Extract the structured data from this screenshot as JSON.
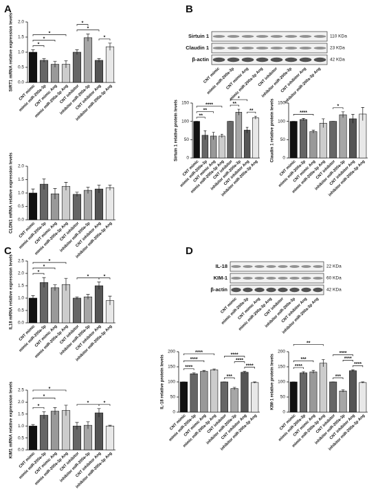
{
  "panel_labels": [
    "A",
    "B",
    "C",
    "D"
  ],
  "blots": [
    {
      "rows": [
        {
          "label": "Sirtuin 1",
          "size": "110 KDa"
        },
        {
          "label": "Claudin 1",
          "size": "23 KDa"
        },
        {
          "label": "β-actin",
          "size": "42 KDa"
        }
      ],
      "lanes": [
        "CNT mimic",
        "mimic miR-200a-3p",
        "CNT mimic Ang",
        "mimic miR-200a-3p Ang",
        "CNT inhibitor",
        "inhibitor miR-200a-3p",
        "CNT inhibitor Ang",
        "inhibitor miR-200a-3p Ang"
      ]
    },
    {
      "rows": [
        {
          "label": "IL-18",
          "size": "22 KDa"
        },
        {
          "label": "KIM-1",
          "size": "60 KDa"
        },
        {
          "label": "β-actin",
          "size": "42 KDa"
        }
      ],
      "lanes": [
        "CNT mimic",
        "mimic miR-200a-3p",
        "CNT mimic Ang",
        "mimic miR-200a-3p Ang",
        "CNT inhibitor",
        "inhibitor miR-200a-3p",
        "CNT inhibitor Ang",
        "inhibitor miR-200a-3p Ang"
      ]
    }
  ],
  "chart_data": [
    {
      "type": "bar",
      "ylabel": "SIRT1 mRNA relative expression levels",
      "categories": [
        "CNT mimic",
        "mimic miR-200a-3p",
        "CNT mimic Ang",
        "mimic miR-200a-3p Ang",
        "CNT inhibitor",
        "inhibitor miR-200a-3p",
        "CNT inhibitor Ang",
        "inhibitor miR-200a-3p Ang"
      ],
      "values": [
        1.0,
        0.73,
        0.6,
        0.6,
        1.0,
        1.48,
        0.73,
        1.18
      ],
      "errors": [
        0.08,
        0.06,
        0.1,
        0.12,
        0.08,
        0.12,
        0.06,
        0.12
      ],
      "colors": [
        "#111111",
        "#666666",
        "#999999",
        "#cccccc",
        "#666666",
        "#a6a6a6",
        "#555555",
        "#e8e8e8"
      ],
      "ylim": [
        0,
        2
      ],
      "yticks": [
        {
          "value": 0,
          "label": "0.0"
        },
        0.5,
        {
          "value": 1,
          "label": "1.0"
        },
        1.5,
        {
          "value": 2,
          "label": "2.0"
        }
      ],
      "annotations": [
        "*",
        "*",
        "*",
        "*",
        "*",
        "*"
      ]
    },
    {
      "type": "bar",
      "ylabel": "CLDN1 mRNA relative expression levels",
      "categories": [
        "CNT mimic",
        "mimic miR-200a-3p",
        "CNT mimic Ang",
        "mimic miR-200a-3p Ang",
        "CNT inhibitor",
        "inhibitor miR-200a-3p",
        "CNT inhibitor Ang",
        "inhibitor miR-200a-3p Ang"
      ],
      "values": [
        1.0,
        1.33,
        0.97,
        1.25,
        0.95,
        1.1,
        1.15,
        1.2
      ],
      "errors": [
        0.15,
        0.2,
        0.2,
        0.15,
        0.08,
        0.12,
        0.15,
        0.1
      ],
      "colors": [
        "#111111",
        "#666666",
        "#999999",
        "#cccccc",
        "#666666",
        "#a6a6a6",
        "#555555",
        "#e8e8e8"
      ],
      "ylim": [
        0,
        2
      ],
      "yticks": [
        {
          "value": 0,
          "label": "0.0"
        },
        0.5,
        {
          "value": 1,
          "label": "1.0"
        },
        1.5,
        {
          "value": 2,
          "label": "2.0"
        }
      ],
      "annotations": []
    },
    {
      "type": "bar",
      "ylabel": "Sirtuin 1 relative protein levels",
      "categories": [
        "CNT mimic",
        "mimic miR-200a-3p",
        "CNT mimic Ang",
        "mimic miR-200a-3p Ang",
        "CNT inhibitor",
        "inhibitor miR-200a-3p",
        "CNT inhibitor Ang",
        "inhibitor miR-200a-3p Ang"
      ],
      "values": [
        100,
        62,
        60,
        60,
        100,
        125,
        76,
        110
      ],
      "errors": [
        0,
        12,
        10,
        5,
        0,
        8,
        8,
        4
      ],
      "colors": [
        "#111111",
        "#666666",
        "#999999",
        "#cccccc",
        "#666666",
        "#a6a6a6",
        "#555555",
        "#e8e8e8"
      ],
      "ylim": [
        0,
        150
      ],
      "yticks": [
        0,
        50,
        100,
        150
      ],
      "annotations": [
        "**",
        "**",
        "****",
        "**",
        "*",
        "**"
      ]
    },
    {
      "type": "bar",
      "ylabel": "Claudin 1 relative protein levels",
      "categories": [
        "CNT mimic",
        "mimic miR-200a-3p",
        "CNT mimic Ang",
        "mimic miR-200a-3p Ang",
        "CNT inhibitor",
        "inhibitor miR-200a-3p",
        "CNT inhibitor Ang",
        "inhibitor miR-200a-3p Ang"
      ],
      "values": [
        100,
        105,
        72,
        95,
        100,
        118,
        107,
        120
      ],
      "errors": [
        0,
        3,
        4,
        12,
        0,
        8,
        12,
        18
      ],
      "colors": [
        "#111111",
        "#666666",
        "#999999",
        "#cccccc",
        "#666666",
        "#a6a6a6",
        "#555555",
        "#e8e8e8"
      ],
      "ylim": [
        0,
        150
      ],
      "yticks": [
        0,
        50,
        100,
        150
      ],
      "annotations": [
        "****",
        "*"
      ]
    },
    {
      "type": "bar",
      "ylabel": "IL18 mRNA relative expression levels",
      "categories": [
        "CNT mimic",
        "mimic miR-200a-3p",
        "CNT mimic Ang",
        "mimic miR-200a-3p Ang",
        "CNT inhibitor",
        "inhibitor miR-200a-3p",
        "CNT inhibitor Ang",
        "inhibitor miR-200a-3p Ang"
      ],
      "values": [
        1.0,
        1.63,
        1.42,
        1.55,
        1.0,
        1.05,
        1.5,
        0.9
      ],
      "errors": [
        0.1,
        0.2,
        0.12,
        0.25,
        0.05,
        0.1,
        0.15,
        0.18
      ],
      "colors": [
        "#111111",
        "#666666",
        "#999999",
        "#cccccc",
        "#666666",
        "#a6a6a6",
        "#555555",
        "#e8e8e8"
      ],
      "ylim": [
        0,
        2.5
      ],
      "yticks": [
        {
          "value": 0,
          "label": "0.0"
        },
        0.5,
        {
          "value": 1,
          "label": "1.0"
        },
        1.5,
        {
          "value": 2,
          "label": "2.0"
        },
        2.5
      ],
      "annotations": [
        "*",
        "*",
        "*",
        "*",
        "*"
      ]
    },
    {
      "type": "bar",
      "ylabel": "KIM1 mRNA relative expression levels",
      "categories": [
        "CNT mimic",
        "mimic miR-200a-3p",
        "CNT mimic Ang",
        "mimic miR-200a-3p Ang",
        "CNT inhibitor",
        "inhibitor miR-200a-3p",
        "CNT inhibitor Ang",
        "inhibitor miR-200a-3p Ang"
      ],
      "values": [
        1.0,
        1.45,
        1.62,
        1.65,
        1.0,
        1.03,
        1.55,
        1.0
      ],
      "errors": [
        0.06,
        0.15,
        0.15,
        0.22,
        0.15,
        0.15,
        0.18,
        0.03
      ],
      "colors": [
        "#111111",
        "#666666",
        "#999999",
        "#cccccc",
        "#666666",
        "#a6a6a6",
        "#555555",
        "#e8e8e8"
      ],
      "ylim": [
        0,
        2.5
      ],
      "yticks": [
        {
          "value": 0,
          "label": "0.0"
        },
        0.5,
        {
          "value": 1,
          "label": "1.0"
        },
        1.5,
        {
          "value": 2,
          "label": "2.0"
        },
        2.5
      ],
      "annotations": [
        "*",
        "*",
        "*",
        "*",
        "*"
      ]
    },
    {
      "type": "bar",
      "ylabel": "IL-18 relative protein levels",
      "categories": [
        "CNT mimic",
        "mimic miR-200a-3p",
        "CNT mimic Ang",
        "mimic miR-200a-3p Ang",
        "CNT inhibitor",
        "inhibitor miR-200a-3p",
        "CNT inhibitor Ang",
        "inhibitor miR-200a-3p Ang"
      ],
      "values": [
        100,
        127,
        135,
        140,
        100,
        78,
        132,
        98
      ],
      "errors": [
        0,
        3,
        3,
        3,
        0,
        4,
        3,
        2
      ],
      "colors": [
        "#111111",
        "#666666",
        "#999999",
        "#cccccc",
        "#666666",
        "#a6a6a6",
        "#555555",
        "#e8e8e8"
      ],
      "ylim": [
        0,
        200
      ],
      "yticks": [
        0,
        50,
        100,
        150,
        200
      ],
      "annotations": [
        "****",
        "****",
        "****",
        "***",
        "****",
        "****",
        "****"
      ]
    },
    {
      "type": "bar",
      "ylabel": "KIM-1 relative protein levels",
      "categories": [
        "CNT mimic",
        "mimic miR-200a-3p",
        "CNT mimic Ang",
        "mimic miR-200a-3p Ang",
        "CNT inhibitor",
        "inhibitor miR-200a-3p",
        "CNT inhibitor Ang",
        "inhibitor miR-200a-3p Ang"
      ],
      "values": [
        100,
        130,
        133,
        162,
        100,
        70,
        137,
        98
      ],
      "errors": [
        0,
        4,
        5,
        12,
        0,
        4,
        3,
        2
      ],
      "colors": [
        "#111111",
        "#666666",
        "#999999",
        "#cccccc",
        "#666666",
        "#a6a6a6",
        "#555555",
        "#e8e8e8"
      ],
      "ylim": [
        0,
        200
      ],
      "yticks": [
        0,
        50,
        100,
        150,
        200
      ],
      "annotations": [
        "****",
        "***",
        "**",
        "***",
        "****",
        "****",
        "****"
      ]
    }
  ]
}
